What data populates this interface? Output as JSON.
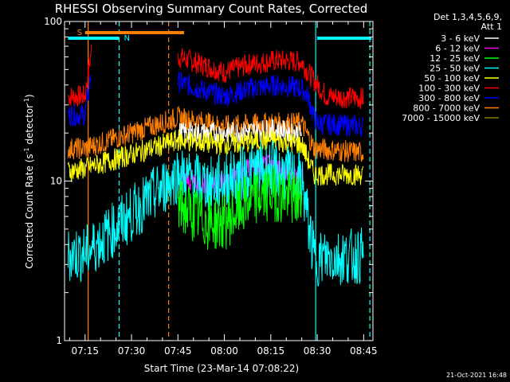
{
  "chart_data": {
    "type": "line",
    "title": "RHESSI Observing Summary Count Rates, Corrected",
    "xlabel": "Start Time (23-Mar-14 07:08:22)",
    "ylabel": "Corrected Count Rate (s⁻¹ detector⁻¹)",
    "ylabel_parts": [
      "Corrected Count Rate (s",
      "-1",
      " detector",
      "-1",
      ")"
    ],
    "y_scale": "log",
    "ylim": [
      1,
      100
    ],
    "y_ticks": [
      {
        "value": 1,
        "label": "1"
      },
      {
        "value": 10,
        "label": "10"
      },
      {
        "value": 100,
        "label": "100"
      }
    ],
    "xlim": [
      "07:08:22",
      "08:48:00"
    ],
    "x_ticks": [
      "07:15",
      "07:30",
      "07:45",
      "08:00",
      "08:15",
      "08:30",
      "08:45"
    ],
    "x_tick_minutes": [
      435,
      450,
      465,
      480,
      495,
      510,
      525
    ],
    "legend_header": [
      "Det 1,3,4,5,6,9,",
      "Att 1"
    ],
    "legend_position": "right",
    "series": [
      {
        "name": "3 - 6 keV",
        "color": "#ffffff",
        "values": []
      },
      {
        "name": "6 - 12 keV",
        "color": "#ff00ff",
        "values": []
      },
      {
        "name": "12 - 25 keV",
        "color": "#00ff00",
        "values": []
      },
      {
        "name": "25 - 50 keV",
        "color": "#00ffff",
        "values": []
      },
      {
        "name": "50 - 100 keV",
        "color": "#ffff00",
        "values": []
      },
      {
        "name": "100 - 300 keV",
        "color": "#ff0000",
        "values": []
      },
      {
        "name": "300 - 800 keV",
        "color": "#0000ff",
        "values": []
      },
      {
        "name": "800 - 7000 keV",
        "color": "#ff8000",
        "values": []
      },
      {
        "name": "7000 - 15000 keV",
        "color": "#808000",
        "values": []
      }
    ],
    "plot_series": [
      {
        "label": "100 - 300 keV",
        "color": "#ff0000",
        "points": [
          [
            429.5,
            34
          ],
          [
            435,
            34
          ],
          [
            437,
            66
          ],
          [
            458,
            0
          ],
          [
            465,
            60
          ],
          [
            475,
            52
          ],
          [
            480,
            48
          ],
          [
            488,
            54
          ],
          [
            497,
            57
          ],
          [
            505,
            56
          ],
          [
            507,
            48
          ],
          [
            513,
            34
          ],
          [
            525,
            33
          ]
        ]
      },
      {
        "label": "300 - 800 keV",
        "color": "#0000ff",
        "points": [
          [
            429.5,
            26
          ],
          [
            435,
            26
          ],
          [
            437,
            48
          ],
          [
            458,
            0
          ],
          [
            465,
            42
          ],
          [
            475,
            36
          ],
          [
            480,
            34
          ],
          [
            488,
            38
          ],
          [
            497,
            40
          ],
          [
            505,
            38
          ],
          [
            507,
            34
          ],
          [
            509,
            25
          ],
          [
            510,
            23
          ],
          [
            525,
            22
          ]
        ]
      },
      {
        "label": "800 - 7000 keV",
        "color": "#ff8000",
        "points": [
          [
            429.5,
            16
          ],
          [
            435,
            16
          ],
          [
            465,
            25
          ],
          [
            480,
            22
          ],
          [
            495,
            23
          ],
          [
            505,
            23
          ],
          [
            509,
            16
          ],
          [
            525,
            15
          ]
        ]
      },
      {
        "label": "3 - 6 keV",
        "color": "#ffffff",
        "points": [
          [
            465,
            20
          ],
          [
            480,
            20
          ],
          [
            495,
            21
          ],
          [
            505,
            20
          ]
        ]
      },
      {
        "label": "50 - 100 keV",
        "color": "#ffff00",
        "points": [
          [
            429.5,
            11.5
          ],
          [
            435,
            12
          ],
          [
            465,
            18
          ],
          [
            480,
            17
          ],
          [
            495,
            18
          ],
          [
            505,
            17
          ],
          [
            509,
            11
          ],
          [
            525,
            11
          ]
        ]
      },
      {
        "label": "6 - 12 keV",
        "color": "#ff00ff",
        "points": [
          [
            465,
            10.5
          ],
          [
            475,
            9.5
          ],
          [
            480,
            10
          ],
          [
            488,
            12
          ],
          [
            495,
            12.5
          ],
          [
            505,
            10.5
          ]
        ]
      },
      {
        "label": "25 - 50 keV",
        "color": "#00ffff",
        "points": [
          [
            429.5,
            3.5
          ],
          [
            435,
            3.5
          ],
          [
            465,
            11
          ],
          [
            475,
            9.5
          ],
          [
            480,
            10
          ],
          [
            488,
            11.5
          ],
          [
            495,
            12
          ],
          [
            505,
            10
          ],
          [
            509,
            3.3
          ],
          [
            525,
            3.4
          ]
        ]
      },
      {
        "label": "12 - 25 keV",
        "color": "#00ff00",
        "points": [
          [
            465,
            7
          ],
          [
            475,
            5.5
          ],
          [
            480,
            5.5
          ],
          [
            488,
            7.5
          ],
          [
            495,
            8.5
          ],
          [
            505,
            7.5
          ]
        ]
      }
    ],
    "annotations": {
      "saa_flag": {
        "label": "S",
        "color": "#ff8000",
        "start": 435,
        "end": 467
      },
      "night_flags": [
        {
          "label": "N",
          "color": "#00ffff",
          "start": 429.5,
          "end": 446
        },
        {
          "color": "#00ffff",
          "start": 510,
          "end": 527.5
        }
      ],
      "vertical_markers": [
        {
          "minute": 436,
          "color": "#ff8000",
          "style": "solid"
        },
        {
          "minute": 446,
          "color": "#00ffff",
          "style": "dashed"
        },
        {
          "minute": 462,
          "color": "#ff8000",
          "style": "dashed"
        },
        {
          "minute": 509.5,
          "color": "#00ffff",
          "style": "solid"
        },
        {
          "minute": 527,
          "color": "#00ffff",
          "style": "dashed"
        }
      ]
    },
    "timestamp": "21-Oct-2021 16:48"
  }
}
